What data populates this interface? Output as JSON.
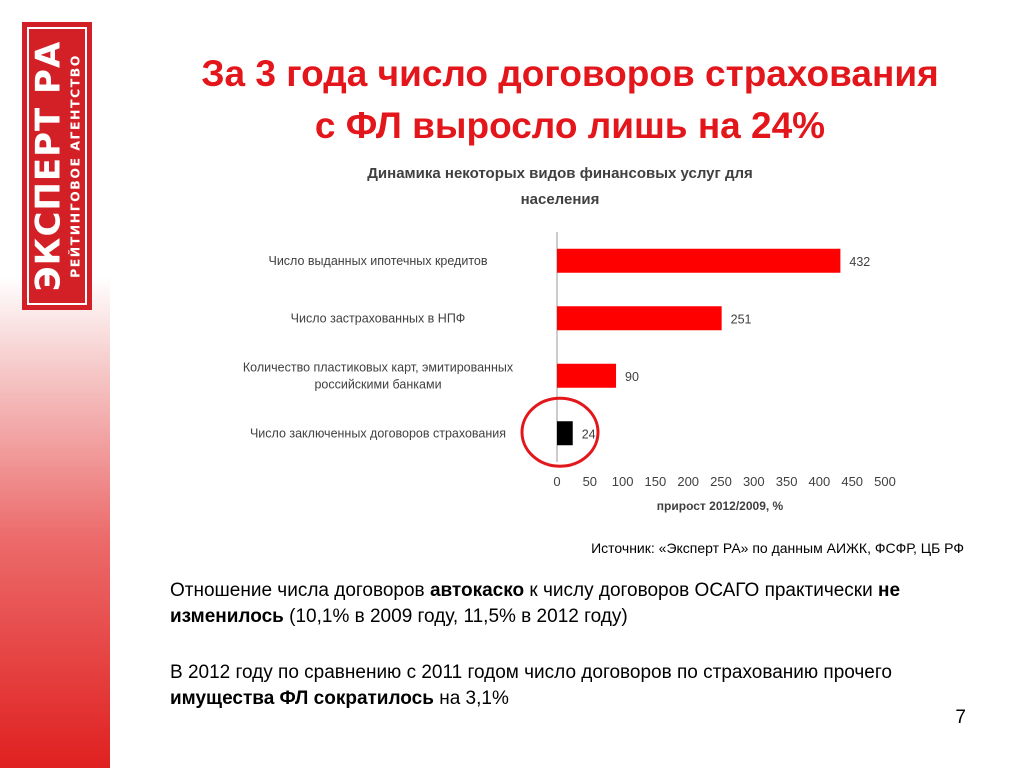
{
  "logo": {
    "main": "ЭКСПЕРТ РА",
    "sub": "РЕЙТИНГОВОЕ АГЕНТСТВО"
  },
  "title": {
    "line1": "За 3 года число договоров страхования",
    "line2": "с ФЛ выросло лишь на 24%"
  },
  "chart_data": {
    "type": "bar",
    "orientation": "horizontal",
    "title": "Динамика некоторых видов финансовых услуг для населения",
    "title_lines": [
      "Динамика некоторых видов финансовых услуг для",
      "населения"
    ],
    "categories": [
      [
        "Число выданных ипотечных кредитов"
      ],
      [
        "Число застрахованных в НПФ"
      ],
      [
        "Количество пластиковых карт, эмитированных",
        "российскими банками"
      ],
      [
        "Число заключенных договоров страхования"
      ]
    ],
    "values": [
      432,
      251,
      90,
      24
    ],
    "bar_colors": [
      "#ff0000",
      "#ff0000",
      "#ff0000",
      "#000000"
    ],
    "highlight_index": 3,
    "highlight_color": "#e3161b",
    "xlabel": "прирост 2012/2009, %",
    "xlim": [
      0,
      500
    ],
    "xticks": [
      0,
      50,
      100,
      150,
      200,
      250,
      300,
      350,
      400,
      450,
      500
    ]
  },
  "source": "Источник: «Эксперт РА» по данным АИЖК, ФСФР, ЦБ РФ",
  "paragraph1": {
    "p1": "Отношение числа договоров ",
    "b1": "автокаско",
    "p2": " к числу договоров ОСАГО практически ",
    "b2": "не изменилось",
    "p3": " (10,1% в 2009 году, 11,5% в 2012 году)"
  },
  "paragraph2": {
    "p1": "В 2012 году по сравнению с 2011 годом число договоров по страхованию прочего ",
    "b1": "имущества ФЛ сократилось",
    "p2": " на 3,1%"
  },
  "page_number": "7",
  "colors": {
    "accent": "#e3161b",
    "bar": "#ff0000",
    "highlight_bar": "#000000"
  }
}
